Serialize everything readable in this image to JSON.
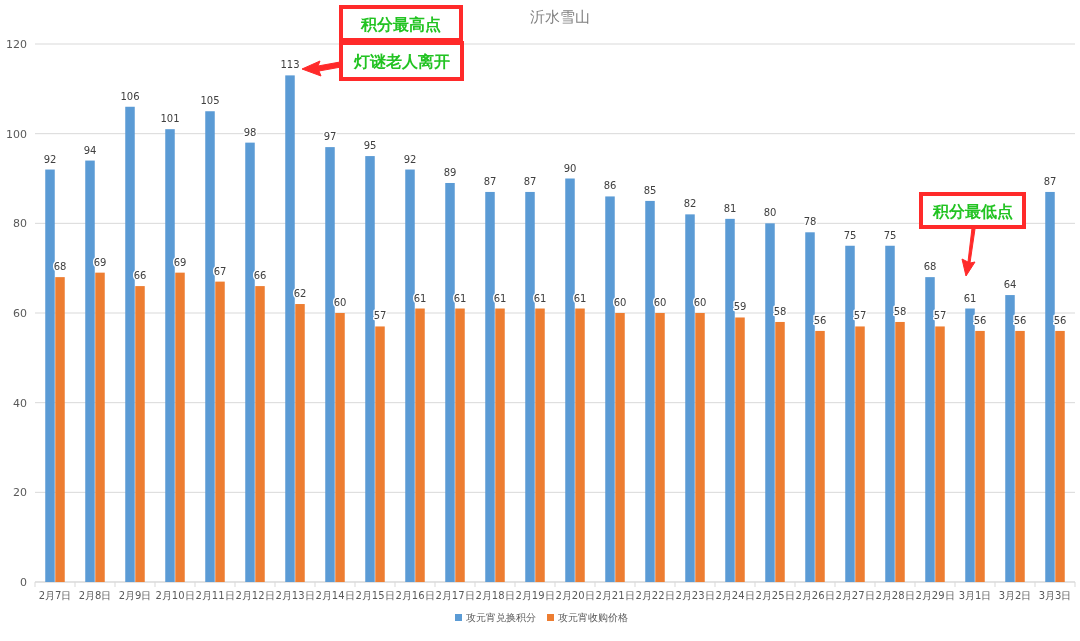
{
  "chart_data": {
    "type": "bar",
    "title": "沂水雪山",
    "categories": [
      "2月7日",
      "2月8日",
      "2月9日",
      "2月10日",
      "2月11日",
      "2月12日",
      "2月13日",
      "2月14日",
      "2月15日",
      "2月16日",
      "2月17日",
      "2月18日",
      "2月19日",
      "2月20日",
      "2月21日",
      "2月22日",
      "2月23日",
      "2月24日",
      "2月25日",
      "2月26日",
      "2月27日",
      "2月28日",
      "2月29日",
      "3月1日",
      "3月2日",
      "3月3日"
    ],
    "series": [
      {
        "name": "攻元宵兑换积分",
        "color": "#5b9bd5",
        "values": [
          92,
          94,
          106,
          101,
          105,
          98,
          113,
          97,
          95,
          92,
          89,
          87,
          87,
          90,
          86,
          85,
          82,
          81,
          80,
          78,
          75,
          75,
          68,
          61,
          64,
          87
        ]
      },
      {
        "name": "攻元宵收购价格",
        "color": "#ed7d31",
        "values": [
          68,
          69,
          66,
          69,
          67,
          66,
          62,
          60,
          57,
          61,
          61,
          61,
          61,
          61,
          60,
          60,
          60,
          59,
          58,
          56,
          57,
          58,
          57,
          56,
          56,
          56
        ]
      }
    ],
    "ylim": [
      0,
      120
    ],
    "yticks": [
      0,
      20,
      40,
      60,
      80,
      100,
      120
    ],
    "grid": "y",
    "legend": "bottom",
    "data_labels": true,
    "annotations": [
      "积分最高点",
      "灯谜老人离开",
      "积分最低点"
    ]
  }
}
